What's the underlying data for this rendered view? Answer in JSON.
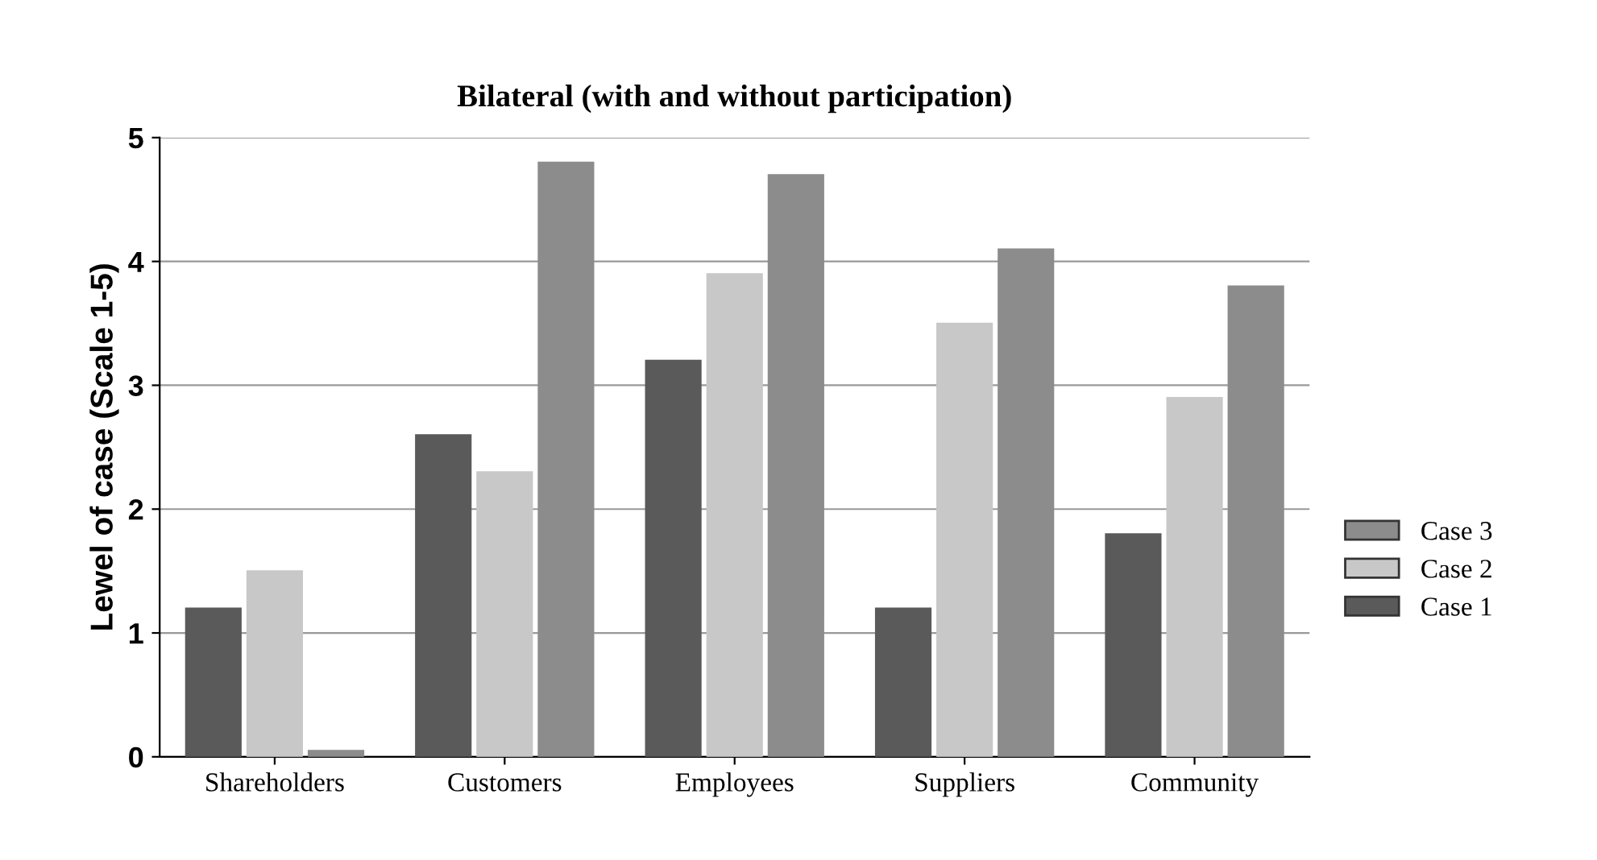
{
  "chart_data": {
    "type": "bar",
    "title": "Bilateral (with and without participation)",
    "ylabel": "Lewel of case (Scale 1-5)",
    "categories": [
      "Shareholders",
      "Customers",
      "Employees",
      "Suppliers",
      "Community"
    ],
    "series": [
      {
        "name": "Case 1",
        "color": "#5a5a5a",
        "values": [
          1.2,
          2.6,
          3.2,
          1.2,
          1.8
        ]
      },
      {
        "name": "Case 2",
        "color": "#c8c8c8",
        "values": [
          1.5,
          2.3,
          3.9,
          3.5,
          2.9
        ]
      },
      {
        "name": "Case 3",
        "color": "#8c8c8c",
        "values": [
          0.05,
          4.8,
          4.7,
          4.1,
          3.8
        ]
      }
    ],
    "ylim": [
      0,
      5
    ],
    "yticks": [
      0,
      1,
      2,
      3,
      4,
      5
    ],
    "grid": "y",
    "legend": "right"
  }
}
